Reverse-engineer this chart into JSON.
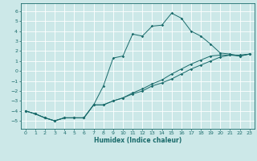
{
  "xlabel": "Humidex (Indice chaleur)",
  "xlim": [
    -0.5,
    23.5
  ],
  "ylim": [
    -5.8,
    6.8
  ],
  "yticks": [
    -5,
    -4,
    -3,
    -2,
    -1,
    0,
    1,
    2,
    3,
    4,
    5,
    6
  ],
  "xticks": [
    0,
    1,
    2,
    3,
    4,
    5,
    6,
    7,
    8,
    9,
    10,
    11,
    12,
    13,
    14,
    15,
    16,
    17,
    18,
    19,
    20,
    21,
    22,
    23
  ],
  "bg_color": "#cce8e8",
  "grid_color": "#ffffff",
  "line_color": "#1a6b6b",
  "line1_x": [
    0,
    1,
    2,
    3,
    4,
    5,
    6,
    7,
    8,
    9,
    10,
    11,
    12,
    13,
    14,
    15,
    16,
    17,
    18,
    19,
    20,
    21,
    22,
    23
  ],
  "line1_y": [
    -4.0,
    -4.3,
    -4.7,
    -5.0,
    -4.7,
    -4.7,
    -4.7,
    -3.4,
    -1.5,
    1.3,
    1.5,
    3.7,
    3.5,
    4.5,
    4.6,
    5.8,
    5.3,
    4.0,
    3.5,
    2.7,
    1.8,
    1.7,
    1.5,
    1.7
  ],
  "line2_x": [
    0,
    1,
    2,
    3,
    4,
    5,
    6,
    7,
    8,
    9,
    10,
    11,
    12,
    13,
    14,
    15,
    16,
    17,
    18,
    19,
    20,
    21,
    22,
    23
  ],
  "line2_y": [
    -4.0,
    -4.3,
    -4.7,
    -5.0,
    -4.7,
    -4.7,
    -4.7,
    -3.4,
    -3.4,
    -3.0,
    -2.7,
    -2.3,
    -2.0,
    -1.5,
    -1.2,
    -0.8,
    -0.3,
    0.2,
    0.6,
    1.0,
    1.4,
    1.6,
    1.6,
    1.7
  ],
  "line3_x": [
    0,
    1,
    2,
    3,
    4,
    5,
    6,
    7,
    8,
    9,
    10,
    11,
    12,
    13,
    14,
    15,
    16,
    17,
    18,
    19,
    20,
    21,
    22,
    23
  ],
  "line3_y": [
    -4.0,
    -4.3,
    -4.7,
    -5.0,
    -4.7,
    -4.7,
    -4.7,
    -3.4,
    -3.4,
    -3.0,
    -2.7,
    -2.2,
    -1.8,
    -1.3,
    -0.9,
    -0.3,
    0.2,
    0.7,
    1.1,
    1.5,
    1.6,
    1.6,
    1.5,
    1.7
  ],
  "tick_fontsize": 4.5,
  "xlabel_fontsize": 5.5,
  "marker_size": 1.8,
  "line_width": 0.7
}
